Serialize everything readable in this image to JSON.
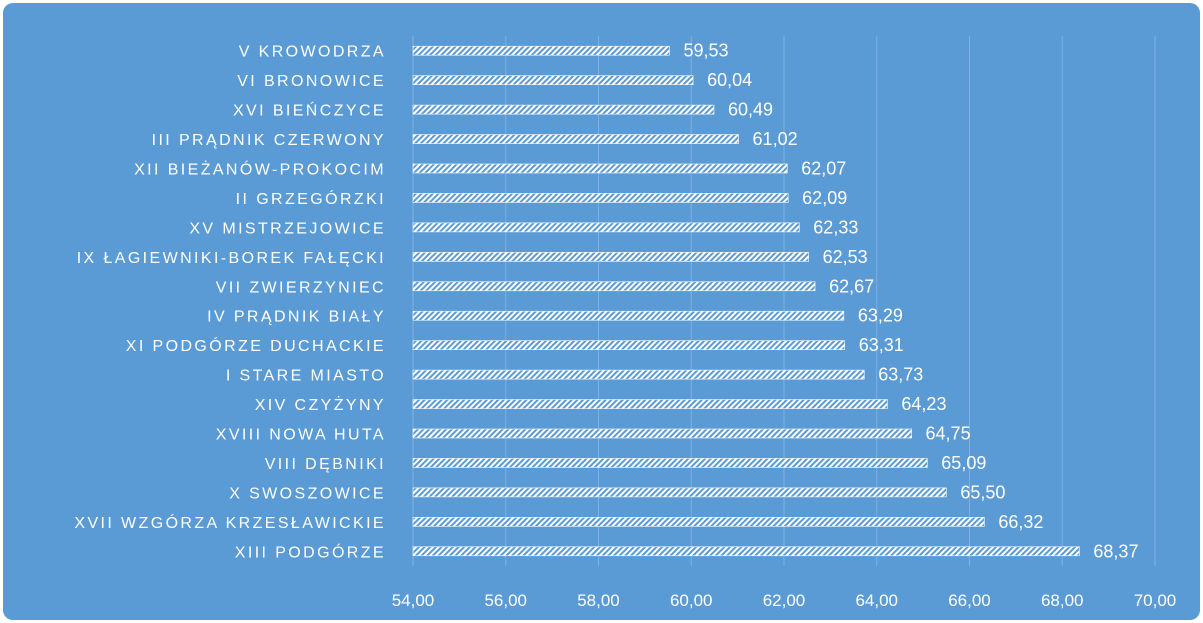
{
  "chart_data": {
    "type": "bar",
    "orientation": "horizontal",
    "categories": [
      "V KROWODRZA",
      "VI BRONOWICE",
      "XVI BIEŃCZYCE",
      "III PRĄDNIK CZERWONY",
      "XII BIEŻANÓW-PROKOCIM",
      "II GRZEGÓRZKI",
      "XV MISTRZEJOWICE",
      "IX ŁAGIEWNIKI-BOREK FAŁĘCKI",
      "VII ZWIERZYNIEC",
      "IV PRĄDNIK BIAŁY",
      "XI PODGÓRZE DUCHACKIE",
      "I STARE MIASTO",
      "XIV CZYŻYNY",
      "XVIII NOWA HUTA",
      "VIII DĘBNIKI",
      "X SWOSZOWICE",
      "XVII WZGÓRZA KRZESŁAWICKIE",
      "XIII PODGÓRZE"
    ],
    "values": [
      59.53,
      60.04,
      60.49,
      61.02,
      62.07,
      62.09,
      62.33,
      62.53,
      62.67,
      63.29,
      63.31,
      63.73,
      64.23,
      64.75,
      65.09,
      65.5,
      66.32,
      68.37
    ],
    "value_labels": [
      "59,53",
      "60,04",
      "60,49",
      "61,02",
      "62,07",
      "62,09",
      "62,33",
      "62,53",
      "62,67",
      "63,29",
      "63,31",
      "63,73",
      "64,23",
      "64,75",
      "65,09",
      "65,50",
      "66,32",
      "68,37"
    ],
    "xlim": [
      54,
      70
    ],
    "xticks": [
      54,
      56,
      58,
      60,
      62,
      64,
      66,
      68,
      70
    ],
    "xtick_labels": [
      "54,00",
      "56,00",
      "58,00",
      "60,00",
      "62,00",
      "64,00",
      "66,00",
      "68,00",
      "70,00"
    ],
    "title": "",
    "xlabel": "",
    "ylabel": "",
    "grid": "vertical",
    "legend": "none",
    "bar_fill": "white diagonal hatch",
    "colors": {
      "background": "#5b9bd5",
      "bar": "#ffffff",
      "text": "#ffffff",
      "grid": "#7fb0df"
    }
  }
}
